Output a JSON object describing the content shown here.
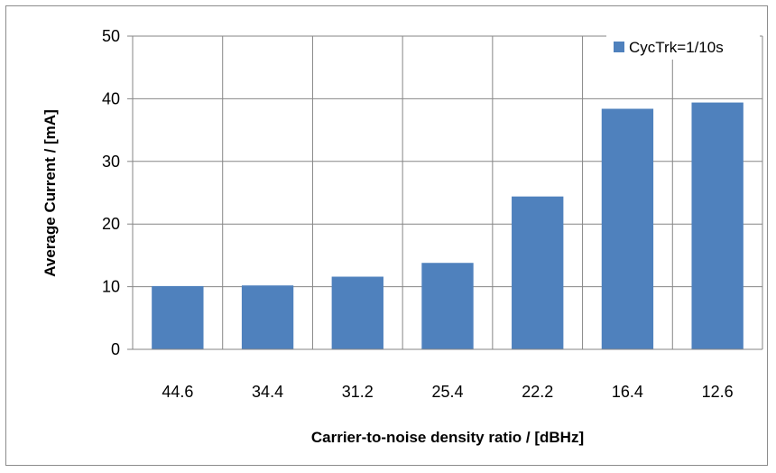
{
  "chart_data": {
    "type": "bar",
    "categories": [
      "44.6",
      "34.4",
      "31.2",
      "25.4",
      "22.2",
      "16.4",
      "12.6"
    ],
    "series": [
      {
        "name": "CycTrk=1/10s",
        "values": [
          10.1,
          10.2,
          11.6,
          13.8,
          24.4,
          38.4,
          39.4
        ],
        "color": "#4f81bd"
      }
    ],
    "xlabel": "Carrier-to-noise density ratio / [dBHz]",
    "ylabel": "Average Current / [mA]",
    "ylim": [
      0,
      50
    ],
    "yticks": [
      0,
      10,
      20,
      30,
      40,
      50
    ],
    "grid": true,
    "legend_position": "top-right"
  }
}
